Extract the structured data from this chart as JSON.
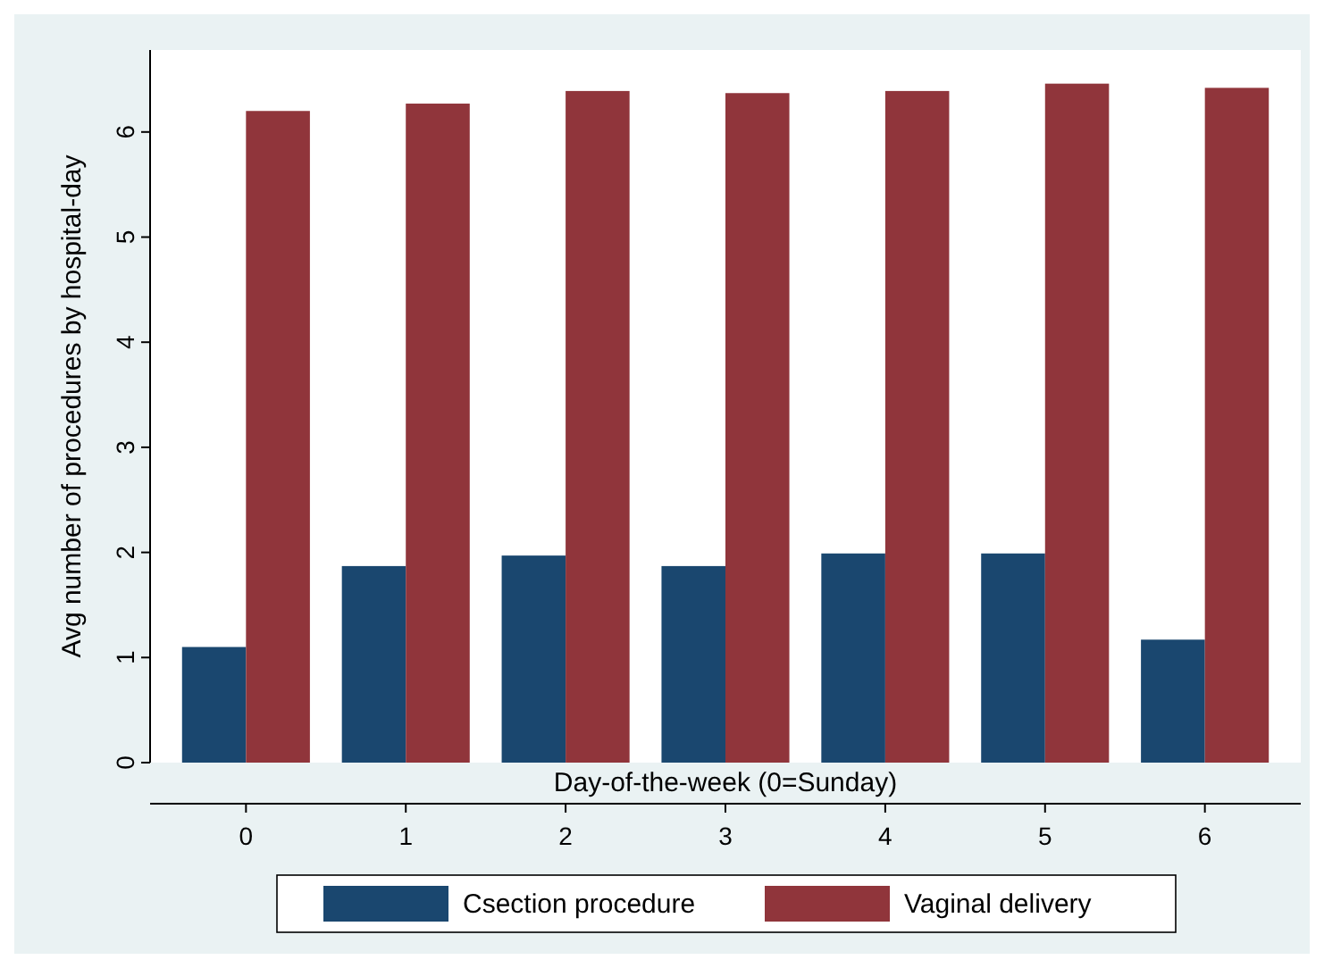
{
  "chart_data": {
    "type": "bar",
    "xlabel": "Day-of-the-week (0=Sunday)",
    "ylabel": "Avg number of procedures by hospital-day",
    "categories": [
      "0",
      "1",
      "2",
      "3",
      "4",
      "5",
      "6"
    ],
    "series": [
      {
        "name": "Csection procedure",
        "color": "#1a476f",
        "values": [
          1.1,
          1.87,
          1.97,
          1.87,
          1.99,
          1.99,
          1.17
        ]
      },
      {
        "name": "Vaginal delivery",
        "color": "#90353b",
        "values": [
          6.2,
          6.27,
          6.39,
          6.37,
          6.39,
          6.46,
          6.42
        ]
      }
    ],
    "ylim": [
      0,
      6.78
    ],
    "yticks": [
      0,
      1,
      2,
      3,
      4,
      5,
      6
    ],
    "grid": false,
    "legend": "bottom"
  }
}
